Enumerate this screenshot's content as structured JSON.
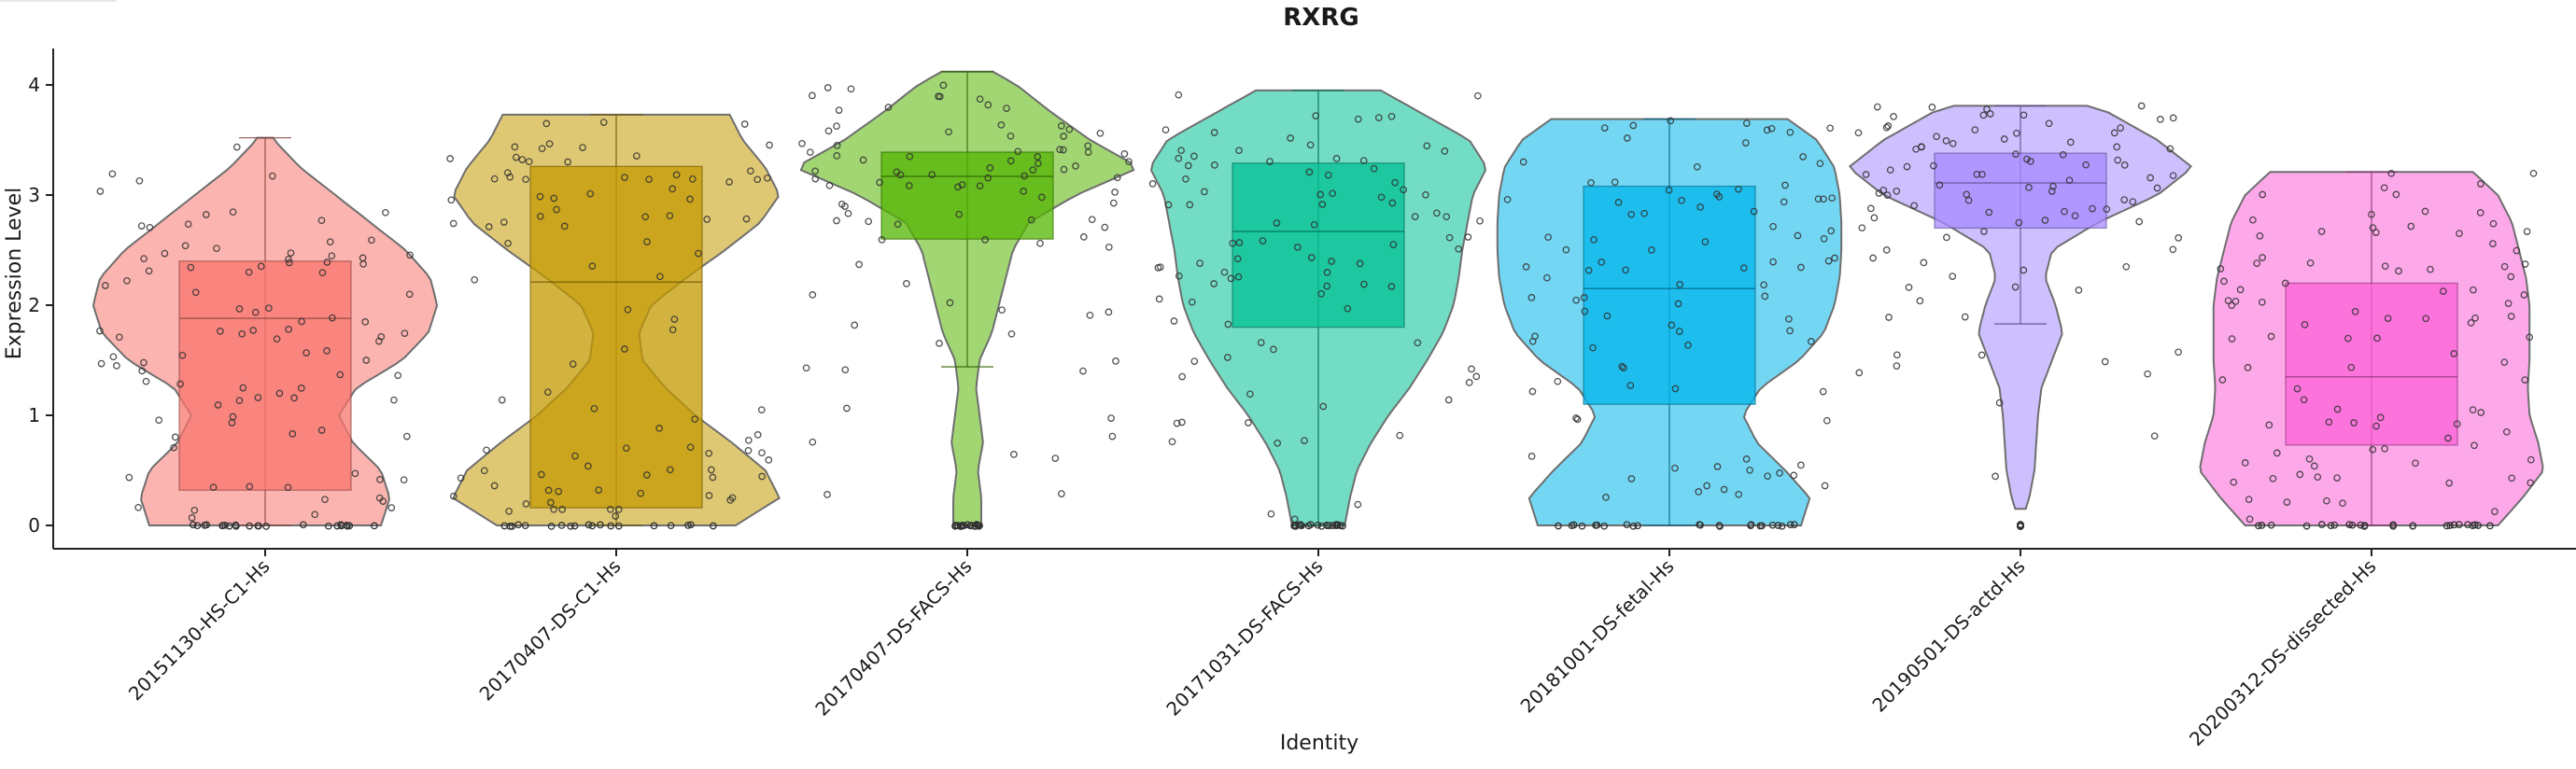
{
  "chart_data": {
    "type": "violin",
    "title": "RXRG",
    "xlabel": "Identity",
    "ylabel": "Expression Level",
    "ylim": [
      0,
      4.2
    ],
    "yticks": [
      0,
      1,
      2,
      3,
      4
    ],
    "grid": false,
    "legend": "none",
    "categories": [
      "20151130-HS-C1-Hs",
      "20170407-DS-C1-Hs",
      "20170407-DS-FACS-Hs",
      "20171031-DS-FACS-Hs",
      "20181001-DS-fetal-Hs",
      "20190501-DS-actd-Hs",
      "20200312-DS-dissected-Hs"
    ],
    "colors": [
      "#F8766D",
      "#C49A00",
      "#53B400",
      "#00C094",
      "#00B6EB",
      "#A58AFF",
      "#FB61D7"
    ],
    "box": [
      {
        "q1": 0.32,
        "median": 1.88,
        "q3": 2.4,
        "whisker_low": 0.0,
        "whisker_high": 3.52
      },
      {
        "q1": 0.16,
        "median": 2.21,
        "q3": 3.26,
        "whisker_low": 0.0,
        "whisker_high": 3.73
      },
      {
        "q1": 2.6,
        "median": 3.17,
        "q3": 3.39,
        "whisker_low": 1.44,
        "whisker_high": 4.12
      },
      {
        "q1": 1.8,
        "median": 2.67,
        "q3": 3.29,
        "whisker_low": 0.0,
        "whisker_high": 3.95
      },
      {
        "q1": 1.1,
        "median": 2.15,
        "q3": 3.08,
        "whisker_low": 0.0,
        "whisker_high": 3.69
      },
      {
        "q1": 2.7,
        "median": 3.11,
        "q3": 3.38,
        "whisker_low": 1.83,
        "whisker_high": 3.81
      },
      {
        "q1": 0.73,
        "median": 1.35,
        "q3": 2.2,
        "whisker_low": 0.0,
        "whisker_high": 3.21
      }
    ],
    "violin_density": {
      "y": [
        0,
        0.25,
        0.5,
        0.75,
        1.0,
        1.25,
        1.5,
        1.75,
        2.0,
        2.25,
        2.5,
        2.75,
        3.0,
        3.25,
        3.5,
        3.75,
        4.0,
        4.25
      ],
      "ranges": [
        [
          0,
          3.52
        ],
        [
          0,
          3.73
        ],
        [
          0,
          4.12
        ],
        [
          0,
          3.95
        ],
        [
          0,
          3.69
        ],
        [
          0.15,
          3.81
        ],
        [
          0,
          3.21
        ]
      ],
      "widths": [
        [
          0.66,
          0.71,
          0.66,
          0.5,
          0.42,
          0.52,
          0.78,
          0.93,
          0.98,
          0.94,
          0.8,
          0.6,
          0.4,
          0.2,
          0.05,
          0,
          0,
          0
        ],
        [
          0.68,
          0.93,
          0.85,
          0.66,
          0.45,
          0.28,
          0.15,
          0.13,
          0.2,
          0.4,
          0.62,
          0.82,
          0.93,
          0.85,
          0.72,
          0.64,
          0,
          0
        ],
        [
          0.08,
          0.08,
          0.06,
          0.09,
          0.07,
          0.05,
          0.07,
          0.14,
          0.18,
          0.22,
          0.26,
          0.35,
          0.62,
          0.98,
          0.7,
          0.48,
          0.28,
          0
        ],
        [
          0.15,
          0.18,
          0.22,
          0.3,
          0.4,
          0.52,
          0.62,
          0.71,
          0.77,
          0.8,
          0.82,
          0.85,
          0.88,
          0.96,
          0.86,
          0.58,
          0.3,
          0
        ],
        [
          0.75,
          0.8,
          0.66,
          0.5,
          0.42,
          0.52,
          0.74,
          0.88,
          0.94,
          0.97,
          0.98,
          0.98,
          0.97,
          0.94,
          0.84,
          0.62,
          0,
          0
        ],
        [
          0,
          0.05,
          0.08,
          0.09,
          0.1,
          0.12,
          0.18,
          0.24,
          0.2,
          0.14,
          0.18,
          0.44,
          0.78,
          0.98,
          0.78,
          0.5,
          0,
          0
        ],
        [
          0.72,
          0.86,
          0.98,
          0.95,
          0.9,
          0.89,
          0.9,
          0.9,
          0.9,
          0.88,
          0.84,
          0.8,
          0.72,
          0.55,
          0.28,
          0,
          0,
          0
        ]
      ]
    }
  }
}
